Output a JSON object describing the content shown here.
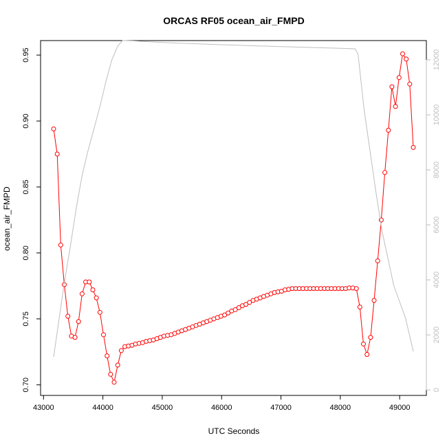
{
  "chart_data": {
    "type": "line",
    "title": "ORCAS RF05 ocean_air_FMPD",
    "xlabel": "UTC Seconds",
    "ylabel": "ocean_air_FMPD",
    "xlim": [
      42950,
      49450
    ],
    "ylim": [
      0.692,
      0.961
    ],
    "y2lim": [
      -200,
      12700
    ],
    "x_ticks": [
      43000,
      44000,
      45000,
      46000,
      47000,
      48000,
      49000
    ],
    "y_ticks": [
      0.7,
      0.75,
      0.8,
      0.85,
      0.9,
      0.95
    ],
    "y2_ticks": [
      0,
      2000,
      4000,
      6000,
      8000,
      10000,
      12000
    ],
    "series": [
      {
        "color": "#ff0000",
        "marker": "open-circle",
        "axis": "left",
        "x": [
          43170,
          43230,
          43290,
          43350,
          43410,
          43470,
          43530,
          43590,
          43650,
          43710,
          43770,
          43830,
          43890,
          43950,
          44010,
          44070,
          44130,
          44190,
          44250,
          44310,
          44370,
          44430,
          44490,
          44550,
          44610,
          44670,
          44730,
          44790,
          44850,
          44910,
          44970,
          45030,
          45090,
          45150,
          45210,
          45270,
          45330,
          45390,
          45450,
          45510,
          45570,
          45630,
          45690,
          45750,
          45810,
          45870,
          45930,
          45990,
          46050,
          46110,
          46170,
          46230,
          46290,
          46350,
          46410,
          46470,
          46530,
          46590,
          46650,
          46710,
          46770,
          46830,
          46890,
          46950,
          47010,
          47070,
          47130,
          47190,
          47250,
          47310,
          47370,
          47430,
          47490,
          47550,
          47610,
          47670,
          47730,
          47790,
          47850,
          47910,
          47970,
          48030,
          48090,
          48150,
          48210,
          48270,
          48330,
          48390,
          48450,
          48510,
          48570,
          48630,
          48690,
          48750,
          48810,
          48870,
          48930,
          48990,
          49050,
          49110,
          49170,
          49230
        ],
        "y": [
          0.894,
          0.875,
          0.806,
          0.776,
          0.752,
          0.737,
          0.736,
          0.748,
          0.769,
          0.778,
          0.778,
          0.772,
          0.766,
          0.755,
          0.738,
          0.722,
          0.708,
          0.702,
          0.715,
          0.726,
          0.729,
          0.7295,
          0.73,
          0.731,
          0.7315,
          0.732,
          0.733,
          0.7335,
          0.734,
          0.735,
          0.736,
          0.737,
          0.7375,
          0.738,
          0.739,
          0.74,
          0.741,
          0.742,
          0.743,
          0.744,
          0.745,
          0.746,
          0.747,
          0.748,
          0.749,
          0.75,
          0.751,
          0.752,
          0.753,
          0.7545,
          0.756,
          0.757,
          0.7585,
          0.76,
          0.761,
          0.7625,
          0.764,
          0.765,
          0.766,
          0.767,
          0.768,
          0.769,
          0.77,
          0.7705,
          0.771,
          0.772,
          0.7725,
          0.773,
          0.773,
          0.773,
          0.773,
          0.773,
          0.773,
          0.773,
          0.773,
          0.773,
          0.773,
          0.773,
          0.773,
          0.773,
          0.773,
          0.773,
          0.773,
          0.7735,
          0.7735,
          0.773,
          0.759,
          0.731,
          0.723,
          0.736,
          0.764,
          0.794,
          0.825,
          0.861,
          0.893,
          0.926,
          0.911,
          0.933,
          0.951,
          0.947,
          0.928,
          0.88
        ]
      },
      {
        "color": "#bebebe",
        "axis": "right",
        "x": [
          43170,
          43250,
          43350,
          43450,
          43550,
          43650,
          43750,
          43850,
          43950,
          44050,
          44150,
          44250,
          44330,
          44370,
          44500,
          45000,
          46000,
          47000,
          48000,
          48250,
          48300,
          48400,
          48500,
          48600,
          48700,
          48800,
          48900,
          49000,
          49100,
          49230
        ],
        "y": [
          1200,
          2400,
          3900,
          5200,
          6600,
          7800,
          8700,
          9500,
          10300,
          11200,
          12000,
          12500,
          12700,
          12700,
          12690,
          12630,
          12550,
          12480,
          12420,
          12400,
          12200,
          10200,
          8700,
          7200,
          5800,
          4800,
          3800,
          3200,
          2600,
          1400
        ]
      }
    ]
  }
}
